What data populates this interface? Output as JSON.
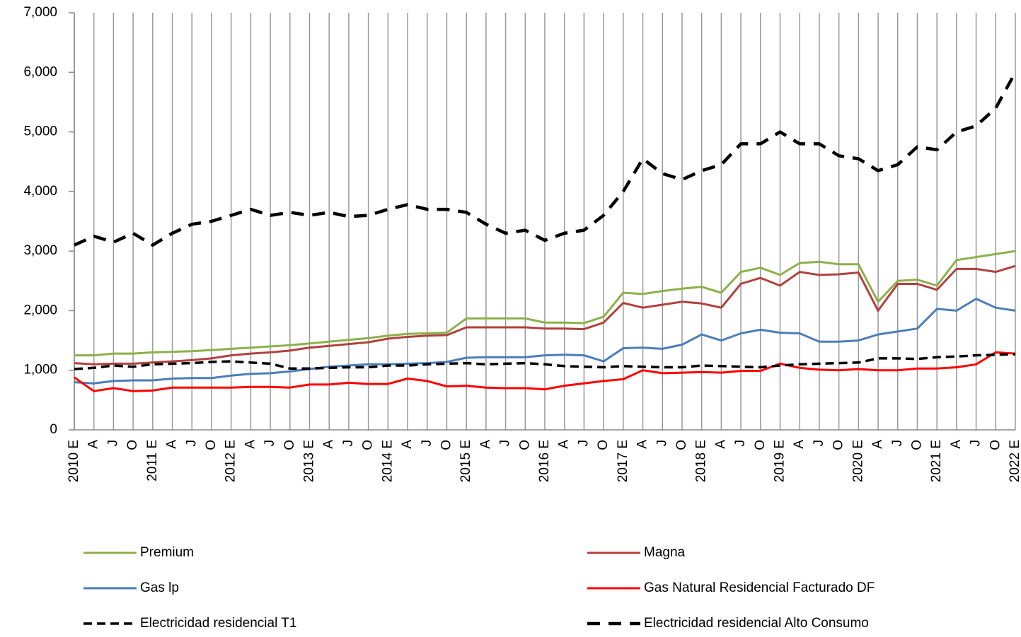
{
  "chart_data": {
    "type": "line",
    "categories": [
      "2010 E",
      "A",
      "J",
      "O",
      "2011 E",
      "A",
      "J",
      "O",
      "2012 E",
      "A",
      "J",
      "O",
      "2013 E",
      "A",
      "J",
      "O",
      "2014 E",
      "A",
      "J",
      "O",
      "2015 E",
      "A",
      "J",
      "O",
      "2016 E",
      "A",
      "J",
      "O",
      "2017 E",
      "A",
      "J",
      "O",
      "2018 E",
      "A",
      "J",
      "O",
      "2019 E",
      "A",
      "J",
      "O",
      "2020 E",
      "A",
      "J",
      "O",
      "2021 E",
      "A",
      "J",
      "O",
      "2022 E"
    ],
    "ylim": [
      0,
      7000
    ],
    "yticks": [
      0,
      {
        "value": 1000,
        "label": "1,000"
      },
      {
        "value": 2000,
        "label": "2,000"
      },
      {
        "value": 3000,
        "label": "3,000"
      },
      {
        "value": 4000,
        "label": "4,000"
      },
      {
        "value": 5000,
        "label": "5,000"
      },
      {
        "value": 6000,
        "label": "6,000"
      },
      {
        "value": 7000,
        "label": "7,000"
      }
    ],
    "grid": "vertical",
    "legend": "bottom",
    "series": [
      {
        "name": "Premium",
        "color": "#8db04a",
        "line_style": "solid",
        "values": [
          1250,
          1250,
          1280,
          1280,
          1300,
          1310,
          1320,
          1340,
          1360,
          1380,
          1400,
          1420,
          1450,
          1480,
          1510,
          1540,
          1580,
          1610,
          1620,
          1630,
          1870,
          1870,
          1870,
          1870,
          1800,
          1800,
          1790,
          1900,
          2300,
          2280,
          2330,
          2370,
          2400,
          2300,
          2650,
          2720,
          2600,
          2800,
          2820,
          2780,
          2780,
          2150,
          2500,
          2520,
          2420,
          2850,
          2900,
          2950,
          3000
        ]
      },
      {
        "name": "Magna",
        "color": "#b0413e",
        "line_style": "solid",
        "values": [
          1120,
          1100,
          1110,
          1110,
          1130,
          1150,
          1170,
          1200,
          1250,
          1280,
          1300,
          1330,
          1380,
          1410,
          1440,
          1470,
          1530,
          1560,
          1580,
          1590,
          1720,
          1720,
          1720,
          1720,
          1700,
          1700,
          1690,
          1800,
          2130,
          2050,
          2100,
          2150,
          2120,
          2050,
          2450,
          2550,
          2420,
          2650,
          2600,
          2610,
          2640,
          2000,
          2450,
          2450,
          2350,
          2700,
          2700,
          2650,
          2750
        ]
      },
      {
        "name": "Gas lp",
        "color": "#4a7ebb",
        "line_style": "solid",
        "values": [
          800,
          780,
          820,
          830,
          830,
          860,
          870,
          870,
          910,
          940,
          950,
          980,
          1020,
          1060,
          1080,
          1100,
          1100,
          1110,
          1120,
          1140,
          1210,
          1220,
          1220,
          1220,
          1250,
          1260,
          1250,
          1150,
          1370,
          1380,
          1360,
          1430,
          1600,
          1500,
          1620,
          1680,
          1630,
          1620,
          1480,
          1480,
          1500,
          1600,
          1650,
          1700,
          2030,
          2000,
          2200,
          2050,
          2000
        ]
      },
      {
        "name": "Gas Natural Residencial Facturado DF",
        "color": "#ff0000",
        "line_style": "solid",
        "values": [
          880,
          650,
          700,
          650,
          660,
          710,
          710,
          710,
          710,
          720,
          720,
          710,
          760,
          760,
          790,
          770,
          770,
          860,
          820,
          730,
          740,
          710,
          700,
          700,
          680,
          740,
          780,
          820,
          850,
          1000,
          950,
          960,
          970,
          960,
          990,
          990,
          1110,
          1040,
          1010,
          1000,
          1020,
          1000,
          1000,
          1030,
          1030,
          1050,
          1100,
          1300,
          1280
        ]
      },
      {
        "name": "Electricidad residencial T1",
        "color": "#000000",
        "line_style": "dashed",
        "values": [
          1020,
          1040,
          1080,
          1060,
          1100,
          1110,
          1120,
          1140,
          1150,
          1130,
          1110,
          1030,
          1030,
          1040,
          1050,
          1050,
          1080,
          1080,
          1100,
          1110,
          1120,
          1100,
          1110,
          1120,
          1100,
          1070,
          1060,
          1050,
          1070,
          1060,
          1050,
          1050,
          1080,
          1070,
          1060,
          1050,
          1080,
          1100,
          1110,
          1120,
          1130,
          1200,
          1200,
          1190,
          1220,
          1230,
          1250,
          1260,
          1270
        ]
      },
      {
        "name": "Electricidad residencial Alto Consumo",
        "color": "#000000",
        "line_style": "long-dashed",
        "values": [
          3100,
          3250,
          3150,
          3300,
          3100,
          3300,
          3450,
          3500,
          3600,
          3700,
          3600,
          3650,
          3600,
          3650,
          3580,
          3600,
          3700,
          3780,
          3700,
          3700,
          3650,
          3450,
          3300,
          3350,
          3180,
          3300,
          3350,
          3600,
          4000,
          4550,
          4300,
          4200,
          4350,
          4450,
          4800,
          4800,
          5000,
          4800,
          4800,
          4600,
          4550,
          4350,
          4450,
          4750,
          4700,
          5000,
          5100,
          5400,
          6000
        ]
      }
    ]
  }
}
